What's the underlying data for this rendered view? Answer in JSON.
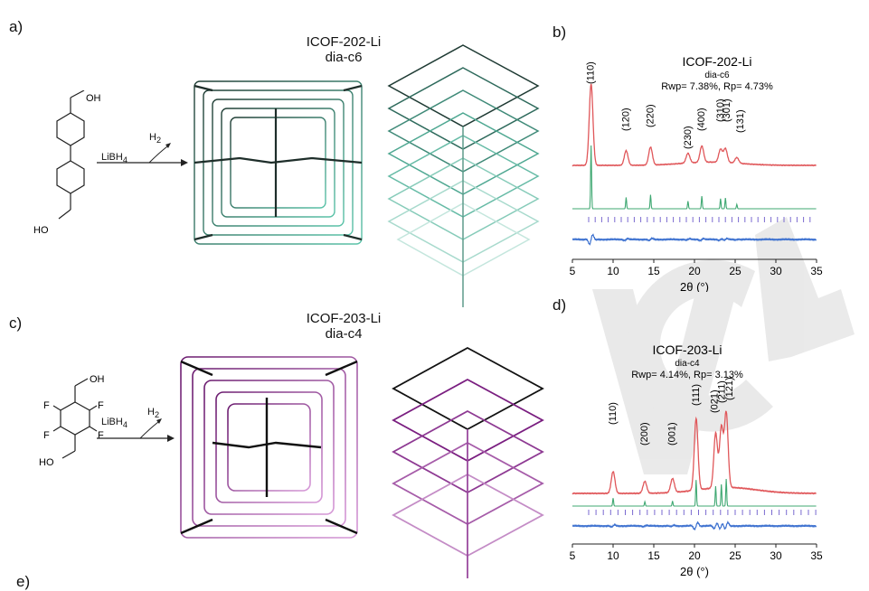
{
  "panels": {
    "a": "a)",
    "b": "b)",
    "c": "c)",
    "d": "d)",
    "e": "e)"
  },
  "top": {
    "title_line1": "ICOF-202-Li",
    "title_line2": "dia-c6",
    "reagent": "LiBH",
    "reagent_sub": "4",
    "gas": "H",
    "gas_sub": "2",
    "oh_top": "OH",
    "oh_bottom": "HO"
  },
  "bottom": {
    "title_line1": "ICOF-203-Li",
    "title_line2": "dia-c4",
    "reagent": "LiBH",
    "reagent_sub": "4",
    "gas": "H",
    "gas_sub": "2",
    "oh_top": "OH",
    "oh_bottom": "HO",
    "fluorine": "F"
  },
  "watermark_text": "VCH",
  "chart_data": [
    {
      "type": "line",
      "panel": "b",
      "title": "ICOF-202-Li",
      "subtitle": "dia-c6",
      "fit_text": "Rwp= 7.38%, Rp= 4.73%",
      "xlabel": "2θ (°)",
      "xlim": [
        5,
        35
      ],
      "xticks": [
        5,
        10,
        15,
        20,
        25,
        30,
        35
      ],
      "series": [
        {
          "name": "experimental",
          "color": "#e0575a"
        },
        {
          "name": "simulated",
          "color": "#3fa872"
        },
        {
          "name": "difference",
          "color": "#3a6fcf"
        }
      ],
      "peaks": [
        {
          "hkl": "(110)",
          "x": 7.3,
          "height": 1.0
        },
        {
          "hkl": "(120)",
          "x": 11.6,
          "height": 0.18
        },
        {
          "hkl": "(220)",
          "x": 14.6,
          "height": 0.22
        },
        {
          "hkl": "(230)",
          "x": 19.2,
          "height": 0.12
        },
        {
          "hkl": "(400)",
          "x": 20.9,
          "height": 0.2
        },
        {
          "hkl": "(310)",
          "x": 23.2,
          "height": 0.16
        },
        {
          "hkl": "(301)",
          "x": 23.8,
          "height": 0.17
        },
        {
          "hkl": "(131)",
          "x": 25.2,
          "height": 0.07
        }
      ]
    },
    {
      "type": "line",
      "panel": "d",
      "title": "ICOF-203-Li",
      "subtitle": "dia-c4",
      "fit_text": "Rwp= 4.14%, Rp= 3.13%",
      "xlabel": "2θ (°)",
      "xlim": [
        5,
        35
      ],
      "xticks": [
        5,
        10,
        15,
        20,
        25,
        30,
        35
      ],
      "series": [
        {
          "name": "experimental",
          "color": "#e0575a"
        },
        {
          "name": "simulated",
          "color": "#3fa872"
        },
        {
          "name": "difference",
          "color": "#3a6fcf"
        }
      ],
      "peaks": [
        {
          "hkl": "(110)",
          "x": 10.0,
          "height": 0.22
        },
        {
          "hkl": "(200)",
          "x": 13.9,
          "height": 0.12
        },
        {
          "hkl": "(001)",
          "x": 17.3,
          "height": 0.14
        },
        {
          "hkl": "(111)",
          "x": 20.2,
          "height": 0.72
        },
        {
          "hkl": "(021)",
          "x": 22.6,
          "height": 0.55
        },
        {
          "hkl": "(211)",
          "x": 23.3,
          "height": 0.6
        },
        {
          "hkl": "(121)",
          "x": 23.9,
          "height": 0.75
        }
      ]
    }
  ]
}
